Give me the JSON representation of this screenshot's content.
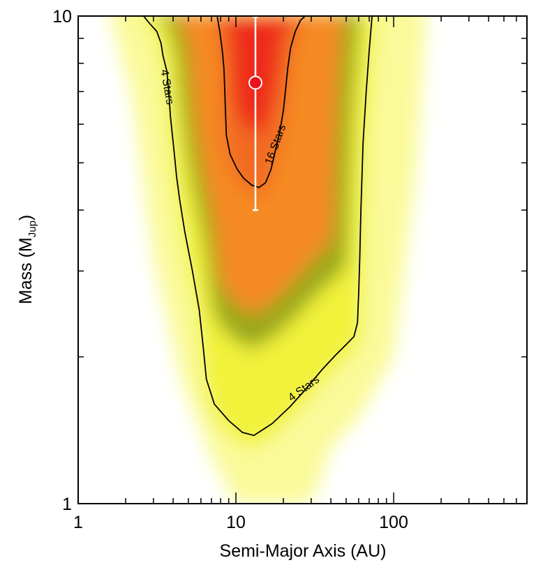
{
  "chart_data": {
    "type": "heatmap",
    "title": "",
    "xlabel": "Semi-Major Axis (AU)",
    "ylabel_main": "Mass (M",
    "ylabel_sub": "Jup",
    "ylabel_end": ")",
    "xscale": "log",
    "yscale": "log",
    "xlim": [
      1,
      700
    ],
    "ylim": [
      1,
      10
    ],
    "x_tick_labels": [
      {
        "value": 1,
        "label": "1"
      },
      {
        "value": 10,
        "label": "10"
      },
      {
        "value": 100,
        "label": "100"
      }
    ],
    "y_tick_labels": [
      {
        "value": 1,
        "label": "1"
      },
      {
        "value": 10,
        "label": "10"
      }
    ],
    "density_ridge": [
      {
        "a": 1.6,
        "low": 10,
        "high": 10
      },
      {
        "a": 2.2,
        "low": 6.8,
        "high": 10
      },
      {
        "a": 3.0,
        "low": 3.2,
        "high": 10
      },
      {
        "a": 4.5,
        "low": 1.8,
        "high": 10
      },
      {
        "a": 7.0,
        "low": 1.25,
        "high": 10
      },
      {
        "a": 10.0,
        "low": 1.0,
        "high": 10
      },
      {
        "a": 16.0,
        "low": 1.0,
        "high": 10
      },
      {
        "a": 30.0,
        "low": 1.0,
        "high": 10
      },
      {
        "a": 40.0,
        "low": 1.3,
        "high": 10
      },
      {
        "a": 60.0,
        "low": 1.5,
        "high": 10
      },
      {
        "a": 100.0,
        "low": 2.0,
        "high": 10
      },
      {
        "a": 140.0,
        "low": 5.0,
        "high": 10
      },
      {
        "a": 160.0,
        "low": 10,
        "high": 10
      }
    ],
    "contours": [
      {
        "label": "4 Stars",
        "level": 4,
        "points": [
          [
            2.6,
            10
          ],
          [
            2.8,
            9.7
          ],
          [
            3.15,
            9.3
          ],
          [
            3.35,
            8.8
          ],
          [
            3.45,
            8.3
          ],
          [
            3.65,
            7.7
          ],
          [
            3.75,
            7.0
          ],
          [
            3.85,
            6.2
          ],
          [
            4.05,
            5.3
          ],
          [
            4.2,
            4.7
          ],
          [
            4.4,
            4.2
          ],
          [
            4.75,
            3.6
          ],
          [
            5.3,
            3.0
          ],
          [
            5.85,
            2.5
          ],
          [
            6.2,
            2.1
          ],
          [
            6.5,
            1.8
          ],
          [
            7.3,
            1.6
          ],
          [
            9.0,
            1.48
          ],
          [
            11.0,
            1.4
          ],
          [
            13.0,
            1.38
          ],
          [
            17.0,
            1.46
          ],
          [
            22.0,
            1.58
          ],
          [
            27.0,
            1.7
          ],
          [
            35.0,
            1.88
          ],
          [
            43.0,
            2.02
          ],
          [
            50.0,
            2.12
          ],
          [
            56.0,
            2.2
          ],
          [
            59.0,
            2.35
          ],
          [
            60.0,
            2.7
          ],
          [
            61.0,
            3.2
          ],
          [
            62.0,
            4.0
          ],
          [
            64.0,
            5.5
          ],
          [
            67.0,
            7.0
          ],
          [
            70.0,
            8.5
          ],
          [
            73.0,
            10
          ]
        ],
        "labels": [
          {
            "text": "4 Stars",
            "a": 3.65,
            "m": 7.15,
            "angle": 80
          },
          {
            "text": "4 Stars",
            "a": 27.0,
            "m": 1.72,
            "angle": -36
          }
        ]
      },
      {
        "label": "16 Stars",
        "level": 16,
        "points": [
          [
            7.6,
            10
          ],
          [
            7.9,
            9.3
          ],
          [
            8.2,
            8.5
          ],
          [
            8.4,
            7.8
          ],
          [
            8.5,
            7.0
          ],
          [
            8.6,
            6.3
          ],
          [
            8.7,
            5.7
          ],
          [
            9.2,
            5.2
          ],
          [
            10.2,
            4.85
          ],
          [
            11.2,
            4.65
          ],
          [
            12.6,
            4.5
          ],
          [
            14.0,
            4.45
          ],
          [
            15.4,
            4.55
          ],
          [
            16.7,
            4.85
          ],
          [
            17.8,
            5.3
          ],
          [
            19.0,
            5.8
          ],
          [
            20.0,
            6.4
          ],
          [
            20.6,
            7.0
          ],
          [
            21.3,
            7.8
          ],
          [
            22.2,
            8.6
          ],
          [
            23.8,
            9.3
          ],
          [
            25.7,
            9.8
          ],
          [
            27.5,
            10
          ]
        ],
        "labels": [
          {
            "text": "16 Stars",
            "a": 17.9,
            "m": 5.45,
            "angle": -70
          }
        ]
      }
    ],
    "point": {
      "a": 13.3,
      "m": 7.3,
      "m_low": 4.0,
      "m_high": 10.0
    }
  }
}
